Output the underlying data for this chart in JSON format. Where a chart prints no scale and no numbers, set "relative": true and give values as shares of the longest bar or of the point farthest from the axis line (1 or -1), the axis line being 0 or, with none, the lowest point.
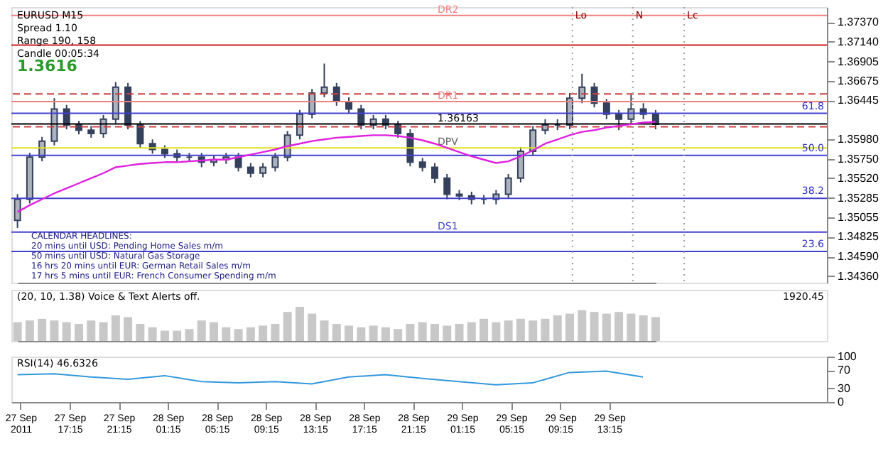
{
  "chart_data": [
    {
      "type": "candlestick",
      "tick_labels": "y",
      "grid": false,
      "categories": [
        null,
        null,
        null,
        null,
        null,
        null,
        null,
        null,
        null,
        null,
        null,
        null,
        null,
        null,
        null,
        null,
        null,
        null,
        null,
        null,
        null,
        null,
        null,
        null,
        null,
        null,
        null,
        null,
        null,
        null,
        null,
        null,
        null,
        null,
        null,
        null,
        null,
        null,
        null,
        null,
        null,
        null,
        null,
        null,
        null,
        null,
        null,
        null,
        null,
        null,
        null,
        null,
        null
      ],
      "ohlc": [
        [
          1.3502,
          1.3533,
          1.3493,
          1.3527
        ],
        [
          1.3527,
          1.3582,
          1.3522,
          1.3577
        ],
        [
          1.3577,
          1.3601,
          1.3572,
          1.3596
        ],
        [
          1.3596,
          1.3647,
          1.3591,
          1.3634
        ],
        [
          1.3634,
          1.3639,
          1.361,
          1.3615
        ],
        [
          1.3615,
          1.362,
          1.3604,
          1.3609
        ],
        [
          1.3609,
          1.3614,
          1.36,
          1.3605
        ],
        [
          1.3605,
          1.3627,
          1.36,
          1.3622
        ],
        [
          1.3622,
          1.3666,
          1.3617,
          1.366
        ],
        [
          1.366,
          1.3665,
          1.361,
          1.3615
        ],
        [
          1.3615,
          1.362,
          1.3588,
          1.3593
        ],
        [
          1.3593,
          1.3598,
          1.3581,
          1.3586
        ],
        [
          1.3586,
          1.3591,
          1.3576,
          1.3581
        ],
        [
          1.3581,
          1.3586,
          1.3572,
          1.3577
        ],
        [
          1.3577,
          1.3582,
          1.3572,
          1.3577
        ],
        [
          1.3577,
          1.3582,
          1.3565,
          1.3571
        ],
        [
          1.3571,
          1.3579,
          1.3566,
          1.3574
        ],
        [
          1.3574,
          1.3582,
          1.3569,
          1.3577
        ],
        [
          1.3577,
          1.3582,
          1.356,
          1.3565
        ],
        [
          1.3565,
          1.357,
          1.3553,
          1.3558
        ],
        [
          1.3558,
          1.357,
          1.3553,
          1.3565
        ],
        [
          1.3565,
          1.3582,
          1.356,
          1.3577
        ],
        [
          1.3577,
          1.3608,
          1.3572,
          1.3603
        ],
        [
          1.3603,
          1.3633,
          1.3598,
          1.3628
        ],
        [
          1.3628,
          1.3658,
          1.3623,
          1.3653
        ],
        [
          1.3653,
          1.3688,
          1.3648,
          1.366
        ],
        [
          1.366,
          1.3665,
          1.3638,
          1.3643
        ],
        [
          1.3643,
          1.3648,
          1.3629,
          1.3634
        ],
        [
          1.3634,
          1.3639,
          1.361,
          1.3615
        ],
        [
          1.3615,
          1.3627,
          1.361,
          1.3622
        ],
        [
          1.3622,
          1.3627,
          1.361,
          1.3615
        ],
        [
          1.3615,
          1.362,
          1.36,
          1.3605
        ],
        [
          1.3605,
          1.361,
          1.3566,
          1.3571
        ],
        [
          1.3571,
          1.3576,
          1.356,
          1.3565
        ],
        [
          1.3565,
          1.357,
          1.3546,
          1.3552
        ],
        [
          1.3552,
          1.3557,
          1.3527,
          1.3533
        ],
        [
          1.3533,
          1.3538,
          1.3526,
          1.3531
        ],
        [
          1.3531,
          1.3536,
          1.3521,
          1.3527
        ],
        [
          1.3527,
          1.3532,
          1.3521,
          1.3527
        ],
        [
          1.3527,
          1.3538,
          1.3521,
          1.3533
        ],
        [
          1.3533,
          1.3557,
          1.3528,
          1.3552
        ],
        [
          1.3552,
          1.3589,
          1.3547,
          1.3584
        ],
        [
          1.3584,
          1.3614,
          1.3579,
          1.3609
        ],
        [
          1.3609,
          1.3622,
          1.3604,
          1.3615
        ],
        [
          1.3615,
          1.3622,
          1.3609,
          1.3615
        ],
        [
          1.3615,
          1.3653,
          1.361,
          1.3647
        ],
        [
          1.3647,
          1.3676,
          1.3641,
          1.366
        ],
        [
          1.366,
          1.3665,
          1.3636,
          1.3641
        ],
        [
          1.3641,
          1.3646,
          1.3622,
          1.3628
        ],
        [
          1.3628,
          1.3633,
          1.3609,
          1.3622
        ],
        [
          1.3622,
          1.3651,
          1.3617,
          1.3634
        ],
        [
          1.3634,
          1.3641,
          1.3622,
          1.3628
        ],
        [
          1.3628,
          1.3633,
          1.361,
          1.3616
        ]
      ],
      "color": "#34405c",
      "series": [
        {
          "type": "line",
          "color": "#e020e0",
          "values": [
            1.3512,
            1.352,
            1.3527,
            1.3534,
            1.354,
            1.3546,
            1.3552,
            1.3558,
            1.3565,
            1.3567,
            1.3569,
            1.357,
            1.3571,
            1.3571,
            1.3572,
            1.3573,
            1.3574,
            1.3574,
            1.3577,
            1.358,
            1.3583,
            1.3586,
            1.359,
            1.3593,
            1.3596,
            1.3598,
            1.36,
            1.3601,
            1.3602,
            1.3603,
            1.3603,
            1.3602,
            1.36,
            1.3597,
            1.3593,
            1.3588,
            1.3583,
            1.3578,
            1.3574,
            1.357,
            1.3572,
            1.3578,
            1.3585,
            1.3593,
            1.3598,
            1.3603,
            1.3607,
            1.3609,
            1.3612,
            1.3614,
            1.3616,
            1.3618,
            1.3619
          ]
        }
      ],
      "ylim": [
        1.3428,
        1.3755
      ],
      "yticks": [
        {
          "value": 1.3737,
          "label": "1.37370"
        },
        {
          "value": 1.3714,
          "label": "1.37140"
        },
        {
          "value": 1.36905,
          "label": "1.36905"
        },
        {
          "value": 1.36675,
          "label": "1.36675"
        },
        {
          "value": 1.36445,
          "label": "1.36445"
        },
        {
          "value": 1.3598,
          "label": "1.35980"
        },
        {
          "value": 1.3575,
          "label": "1.35750"
        },
        {
          "value": 1.3552,
          "label": "1.35520"
        },
        {
          "value": 1.35285,
          "label": "1.35285"
        },
        {
          "value": 1.35055,
          "label": "1.35055"
        },
        {
          "value": 1.34825,
          "label": "1.34825"
        },
        {
          "value": 1.3459,
          "label": "1.34590"
        },
        {
          "value": 1.3436,
          "label": "1.34360"
        }
      ],
      "ref_lines": [
        {
          "axis": "y",
          "value": 1.3745,
          "label": "DR2",
          "color": "#f08080",
          "line_style": "solid"
        },
        {
          "axis": "y",
          "value": 1.371,
          "label": null,
          "color": "#d02020",
          "line_style": "solid"
        },
        {
          "axis": "y",
          "value": 1.3652,
          "label": null,
          "color": "#d04040",
          "line_style": "dashed"
        },
        {
          "axis": "y",
          "value": 1.3643,
          "label": "DR1",
          "color": "#f08080",
          "line_style": "solid"
        },
        {
          "axis": "y",
          "value": 1.3629,
          "color": "#4040d0",
          "line_style": "solid"
        },
        {
          "axis": "y",
          "value": 1.36163,
          "label": "1.36163",
          "color": "#000000",
          "line_style": "solid"
        },
        {
          "axis": "y",
          "value": 1.3613,
          "label": null,
          "color": "#d04040",
          "line_style": "dashed"
        },
        {
          "axis": "y",
          "value": 1.3588,
          "label": "DPV",
          "color": "#e0e020",
          "line_style": "solid"
        },
        {
          "axis": "y",
          "value": 1.3579,
          "color": "#4040d0",
          "line_style": "solid"
        },
        {
          "axis": "y",
          "value": 1.3528,
          "color": "#4040d0",
          "line_style": "solid"
        },
        {
          "axis": "y",
          "value": 1.3488,
          "label": "DS1",
          "color": "#4040d0",
          "line_style": "solid"
        },
        {
          "axis": "y",
          "value": 1.3465,
          "color": "#4040d0",
          "line_style": "solid"
        }
      ],
      "annotations": [
        "EURUSD   M15",
        "Spread   1.10",
        "Range   190, 158",
        "Candle   00:05:34",
        "1.3616",
        "CALENDAR HEADLINES:",
        "20 mins until USD: Pending Home Sales m/m",
        "50 mins until USD: Natural Gas Storage",
        "16 hrs 20 mins until EUR: German Retail Sales m/m",
        "17 hrs 5 mins until EUR: French Consumer Spending m/m",
        {
          "text": "61.8",
          "y": 1.3629
        },
        {
          "text": "50.0",
          "y": 1.3579
        },
        {
          "text": "38.2",
          "y": 1.3528
        },
        {
          "text": "23.6",
          "y": 1.3465
        },
        "Lo",
        "N",
        "Lc"
      ]
    },
    {
      "type": "bar",
      "relative": true,
      "color": "#c8c8c8",
      "categories": [
        null,
        null,
        null,
        null,
        null,
        null,
        null,
        null,
        null,
        null,
        null,
        null,
        null,
        null,
        null,
        null,
        null,
        null,
        null,
        null,
        null,
        null,
        null,
        null,
        null,
        null,
        null,
        null,
        null,
        null,
        null,
        null,
        null,
        null,
        null,
        null,
        null,
        null,
        null,
        null,
        null,
        null,
        null,
        null,
        null,
        null,
        null,
        null,
        null,
        null,
        null,
        null,
        null
      ],
      "values": [
        0.55,
        0.6,
        0.65,
        0.6,
        0.55,
        0.5,
        0.6,
        0.55,
        0.75,
        0.7,
        0.5,
        0.4,
        0.3,
        0.3,
        0.35,
        0.6,
        0.55,
        0.4,
        0.35,
        0.4,
        0.45,
        0.5,
        0.85,
        1.0,
        0.8,
        0.6,
        0.5,
        0.45,
        0.4,
        0.45,
        0.4,
        0.35,
        0.5,
        0.55,
        0.5,
        0.45,
        0.5,
        0.55,
        0.65,
        0.55,
        0.6,
        0.65,
        0.6,
        0.65,
        0.75,
        0.8,
        0.9,
        0.85,
        0.8,
        0.85,
        0.8,
        0.75,
        0.7
      ],
      "annotations": [
        "(20, 10, 1.38)   Voice & Text Alerts off.",
        "1920.45"
      ]
    },
    {
      "type": "line",
      "color": "#3399dd",
      "grid": false,
      "tick_labels": "xy",
      "x": [
        "2011-09-27T13:00",
        "2011-09-27T16:00",
        "2011-09-27T19:00",
        "2011-09-27T22:00",
        "2011-09-28T01:00",
        "2011-09-28T04:00",
        "2011-09-28T07:00",
        "2011-09-28T10:00",
        "2011-09-28T13:00",
        "2011-09-28T16:00",
        "2011-09-28T19:00",
        "2011-09-28T22:00",
        "2011-09-29T01:00",
        "2011-09-29T04:00",
        "2011-09-29T07:00",
        "2011-09-29T10:00",
        "2011-09-29T13:00",
        "2011-09-29T16:00"
      ],
      "values": [
        60,
        62,
        55,
        50,
        58,
        45,
        42,
        45,
        40,
        55,
        60,
        52,
        45,
        38,
        42,
        65,
        68,
        55
      ],
      "xlim": [
        "2011-09-27T12:30",
        "2011-09-30T07:00"
      ],
      "xticks": [
        {
          "value": "2011-09-27T13:15",
          "label": "27 Sep 2011"
        },
        {
          "value": "2011-09-27T17:15",
          "label": "27 Sep 17:15"
        },
        {
          "value": "2011-09-27T21:15",
          "label": "27 Sep 21:15"
        },
        {
          "value": "2011-09-28T01:15",
          "label": "28 Sep 01:15"
        },
        {
          "value": "2011-09-28T05:15",
          "label": "28 Sep 05:15"
        },
        {
          "value": "2011-09-28T09:15",
          "label": "28 Sep 09:15"
        },
        {
          "value": "2011-09-28T13:15",
          "label": "28 Sep 13:15"
        },
        {
          "value": "2011-09-28T17:15",
          "label": "28 Sep 17:15"
        },
        {
          "value": "2011-09-28T21:15",
          "label": "28 Sep 21:15"
        },
        {
          "value": "2011-09-29T01:15",
          "label": "29 Sep 01:15"
        },
        {
          "value": "2011-09-29T05:15",
          "label": "29 Sep 05:15"
        },
        {
          "value": "2011-09-29T09:15",
          "label": "29 Sep 09:15"
        },
        {
          "value": "2011-09-29T13:15",
          "label": "29 Sep 13:15"
        }
      ],
      "ylim": [
        0,
        100
      ],
      "yticks": [
        0,
        30,
        70,
        100
      ],
      "annotations": [
        "RSI(14) 46.6326"
      ]
    }
  ]
}
